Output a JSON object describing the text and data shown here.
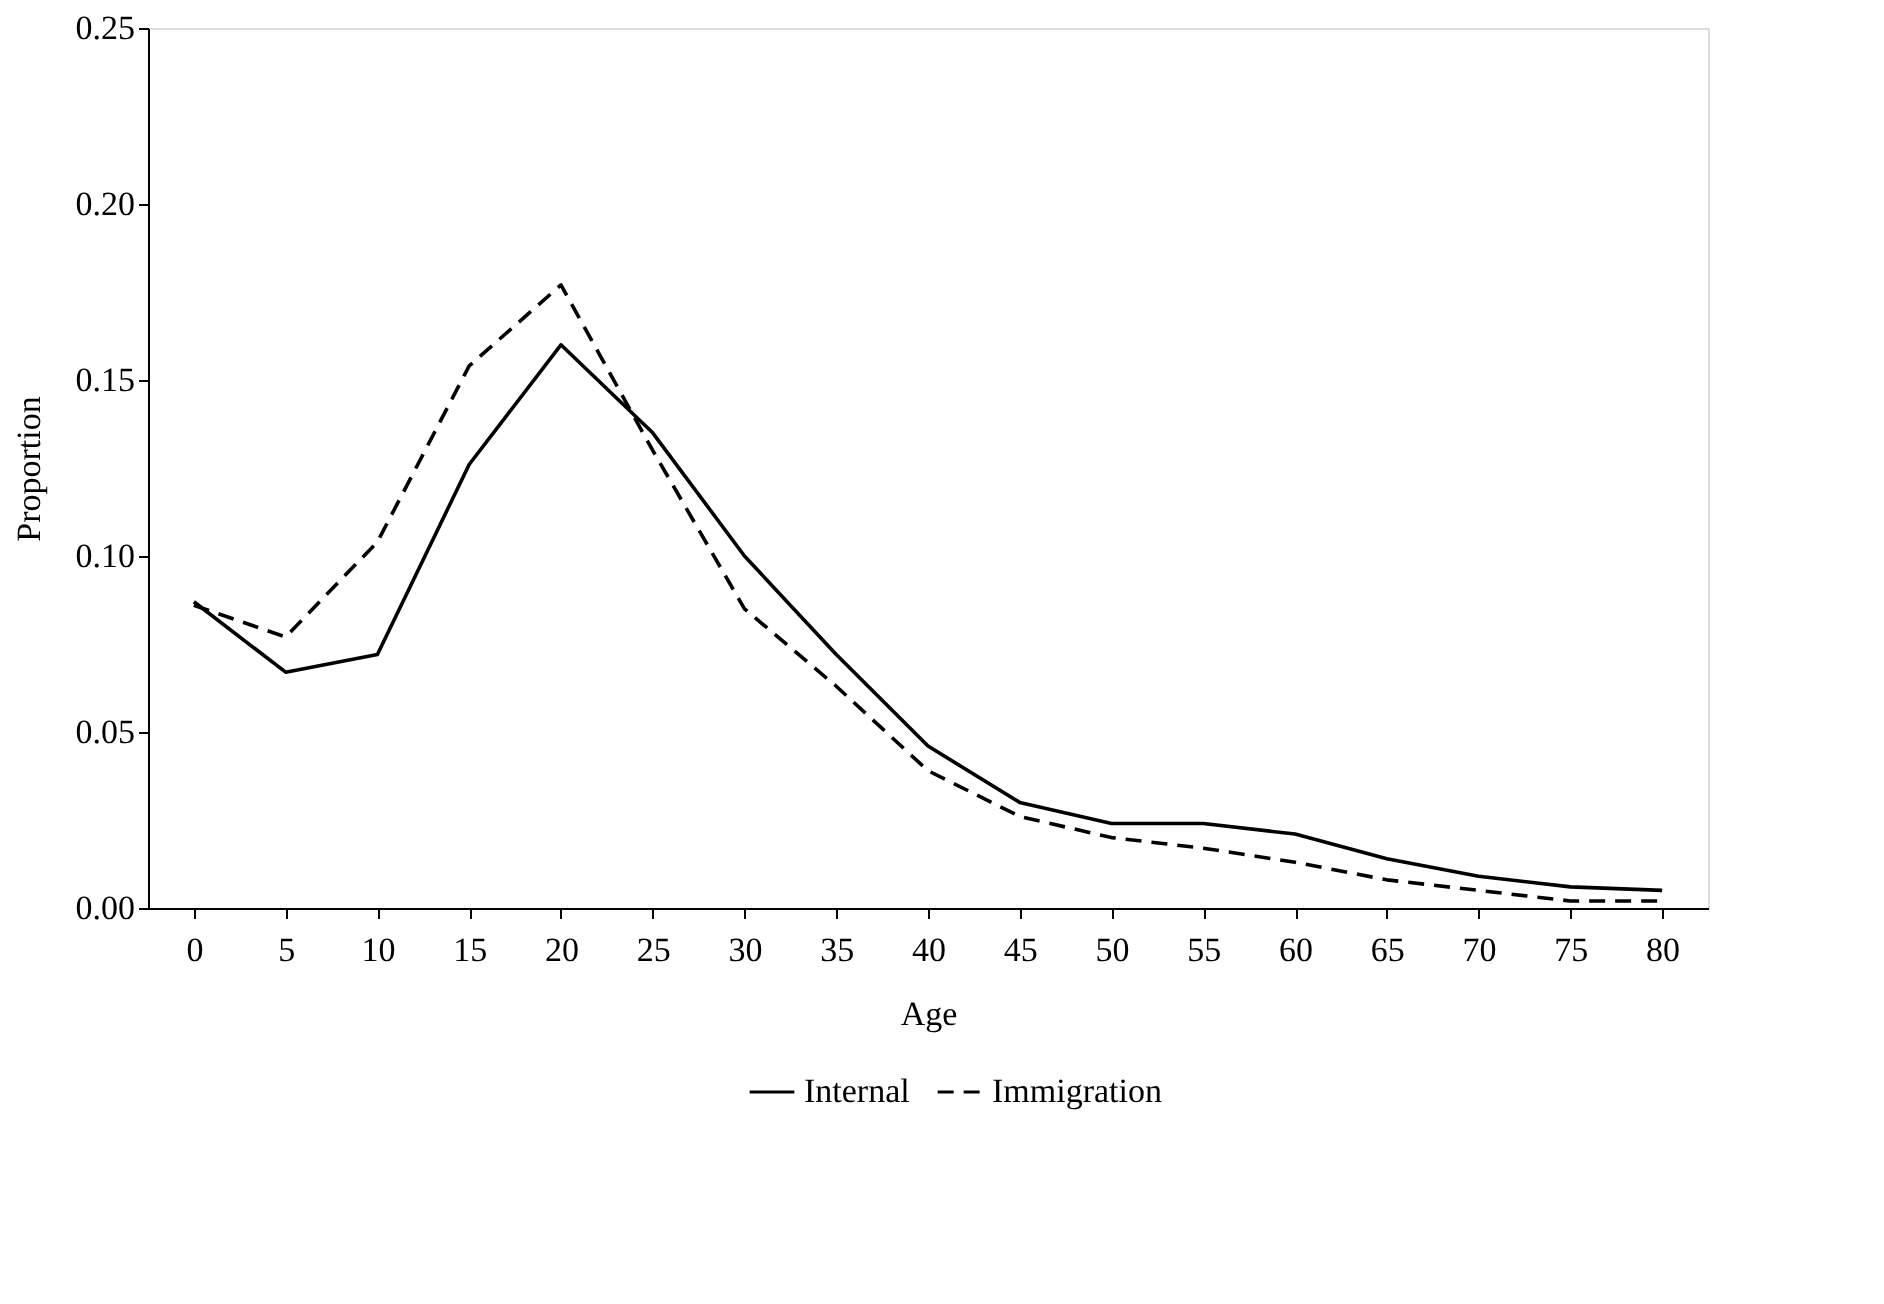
{
  "chart_data": {
    "type": "line",
    "xlabel": "Age",
    "ylabel": "Proportion",
    "categories": [
      "0",
      "5",
      "10",
      "15",
      "20",
      "25",
      "30",
      "35",
      "40",
      "45",
      "50",
      "55",
      "60",
      "65",
      "70",
      "75",
      "80"
    ],
    "series": [
      {
        "name": "Internal",
        "color": "#000000",
        "line_style": "solid",
        "values": [
          0.087,
          0.067,
          0.072,
          0.126,
          0.16,
          0.135,
          0.1,
          0.072,
          0.046,
          0.03,
          0.024,
          0.024,
          0.021,
          0.014,
          0.009,
          0.006,
          0.005
        ]
      },
      {
        "name": "Immigration",
        "color": "#000000",
        "line_style": "dashed",
        "values": [
          0.086,
          0.077,
          0.104,
          0.154,
          0.177,
          0.13,
          0.085,
          0.063,
          0.039,
          0.026,
          0.02,
          0.017,
          0.013,
          0.008,
          0.005,
          0.002,
          0.002
        ]
      }
    ],
    "ylim": [
      0,
      0.25
    ],
    "yticks": [
      {
        "value": 0,
        "label": "0.00"
      },
      {
        "value": 0.05,
        "label": "0.05"
      },
      {
        "value": 0.1,
        "label": "0.10"
      },
      {
        "value": 0.15,
        "label": "0.15"
      },
      {
        "value": 0.2,
        "label": "0.20"
      },
      {
        "value": 0.25,
        "label": "0.25"
      }
    ],
    "grid": false,
    "legend": "bottom",
    "marker": "none"
  }
}
